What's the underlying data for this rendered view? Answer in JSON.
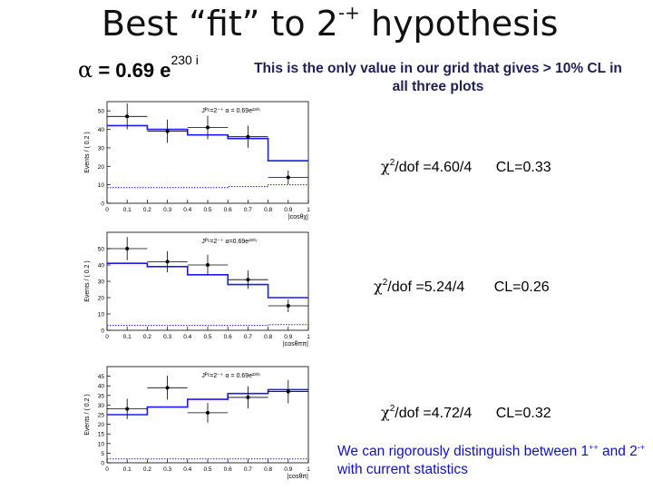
{
  "title": {
    "text": "Best “fit” to 2",
    "sup": "-+",
    "tail": " hypothesis"
  },
  "alpha": {
    "symbol": "α",
    "text": " = 0.69 e",
    "sup": "230 i"
  },
  "note": "This is the only value in our grid that gives > 10% CL in all three plots",
  "conclusion": {
    "pre": "We can rigorously distinguish  between 1",
    "sup1": "++",
    "mid": " and 2",
    "sup2": "-+",
    "post": " with current statistics"
  },
  "colors": {
    "fit": "#1a1aff",
    "data": "#000000",
    "note": "#1f1f55",
    "conclusion": "#1010c8"
  },
  "chart_data": [
    {
      "type": "bar",
      "ylabel": "Events / ( 0.2 )",
      "xlabel": "|cosθχ|",
      "legend": "Jᴾᶜ=2⁻⁺  α = 0.69e²³⁰ᶦ",
      "x_ticks": [
        "0",
        "0.1",
        "0.2",
        "0.3",
        "0.4",
        "0.5",
        "0.6",
        "0.7",
        "0.8",
        "0.9",
        "1"
      ],
      "y_ticks": [
        "0",
        "10",
        "20",
        "30",
        "40",
        "50"
      ],
      "xlim": [
        0,
        1
      ],
      "ylim": [
        0,
        55
      ],
      "bin_edges": [
        0,
        0.2,
        0.4,
        0.6,
        0.8,
        1.0
      ],
      "fit_values": [
        42,
        40,
        37,
        35,
        23
      ],
      "background_values": [
        8.5,
        8.5,
        8.5,
        9,
        10
      ],
      "data": {
        "x": [
          0.1,
          0.3,
          0.5,
          0.7,
          0.9
        ],
        "y": [
          47,
          39,
          41,
          36,
          14
        ],
        "yerr": [
          7,
          6.3,
          6.4,
          6,
          3.7
        ]
      },
      "chi2": {
        "label": "χ",
        "sup": "2",
        "text": "/dof =4.60/4",
        "cl": "CL=0.33"
      }
    },
    {
      "type": "bar",
      "ylabel": "Events / ( 0.2 )",
      "xlabel": "|cosθππ|",
      "legend": "Jᴾᶜ=2⁻⁺  α=0.69e²³⁰ᶦ",
      "x_ticks": [
        "0",
        "0.1",
        "0.2",
        "0.3",
        "0.4",
        "0.5",
        "0.6",
        "0.7",
        "0.8",
        "0.9",
        "1"
      ],
      "y_ticks": [
        "0",
        "10",
        "20",
        "30",
        "40",
        "50"
      ],
      "xlim": [
        0,
        1
      ],
      "ylim": [
        0,
        60
      ],
      "bin_edges": [
        0,
        0.2,
        0.4,
        0.6,
        0.8,
        1.0
      ],
      "fit_values": [
        41,
        39,
        34,
        28,
        20
      ],
      "background_values": [
        3,
        3,
        3,
        3,
        3.5
      ],
      "data": {
        "x": [
          0.1,
          0.3,
          0.5,
          0.7,
          0.9
        ],
        "y": [
          50,
          42,
          40,
          31,
          15
        ],
        "yerr": [
          7.1,
          6.5,
          6.3,
          5.6,
          3.9
        ]
      },
      "chi2": {
        "label": "χ",
        "sup": "2",
        "text": "/dof =5.24/4",
        "cl": "CL=0.26"
      }
    },
    {
      "type": "bar",
      "ylabel": "Events / ( 0.2 )",
      "xlabel": "|cosθπ|",
      "legend": "Jᴾᶜ=2⁻⁺  α = 0.69e²³⁰ᶦ",
      "x_ticks": [
        "0",
        "0.1",
        "0.2",
        "0.3",
        "0.4",
        "0.5",
        "0.6",
        "0.7",
        "0.8",
        "0.9",
        "1"
      ],
      "y_ticks": [
        "0",
        "5",
        "10",
        "15",
        "20",
        "25",
        "30",
        "35",
        "40",
        "45"
      ],
      "xlim": [
        0,
        1
      ],
      "ylim": [
        0,
        50
      ],
      "bin_edges": [
        0,
        0.2,
        0.4,
        0.6,
        0.8,
        1.0
      ],
      "fit_values": [
        25,
        29,
        33,
        36,
        38
      ],
      "background_values": [
        2,
        2,
        2,
        2,
        2
      ],
      "data": {
        "x": [
          0.1,
          0.3,
          0.5,
          0.7,
          0.9
        ],
        "y": [
          28,
          39,
          26,
          34,
          37
        ],
        "yerr": [
          5.3,
          6.2,
          5.1,
          5.8,
          6.1
        ]
      },
      "chi2": {
        "label": "χ",
        "sup": "2",
        "text": "/dof =4.72/4",
        "cl": "CL=0.32"
      }
    }
  ]
}
